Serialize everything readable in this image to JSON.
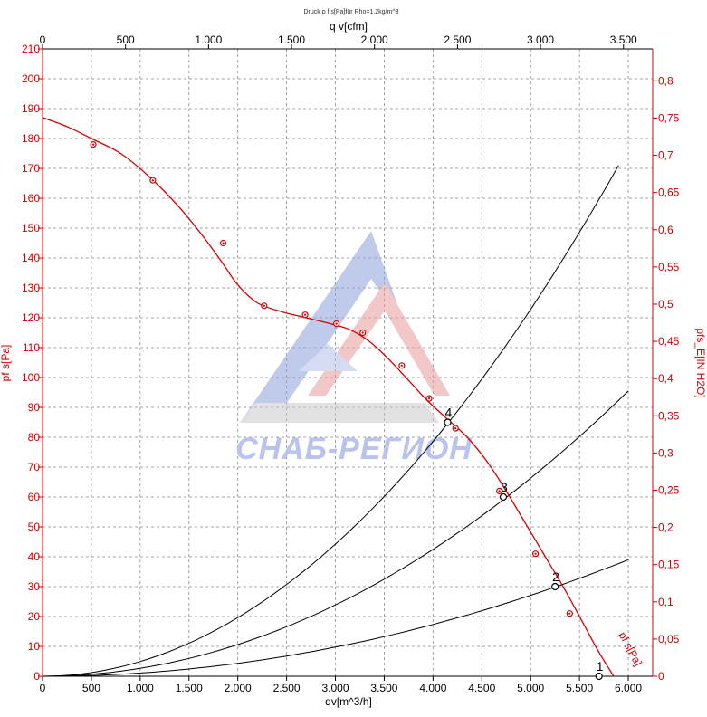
{
  "chart_data": {
    "type": "line",
    "title": "Druck p f s[Pa]für Rho=1,2kg/m^3",
    "xlabel": "qv[m^3/h]",
    "x2label": "q v[cfm]",
    "ylabel": "pf s[Pa]",
    "y2label": "pfs_E[IN H2O]",
    "xlim": [
      0,
      6250
    ],
    "ylim": [
      0,
      210
    ],
    "x2lim": [
      0,
      3676
    ],
    "y2lim": [
      0,
      0.843
    ],
    "grid": true,
    "x_ticks": [
      {
        "v": 0,
        "label": "0"
      },
      {
        "v": 500,
        "label": "500"
      },
      {
        "v": 1000,
        "label": "1.000"
      },
      {
        "v": 1500,
        "label": "1.500"
      },
      {
        "v": 2000,
        "label": "2.000"
      },
      {
        "v": 2500,
        "label": "2.500"
      },
      {
        "v": 3000,
        "label": "3.000"
      },
      {
        "v": 3500,
        "label": "3.500"
      },
      {
        "v": 4000,
        "label": "4.000"
      },
      {
        "v": 4500,
        "label": "4.500"
      },
      {
        "v": 5000,
        "label": "5.000"
      },
      {
        "v": 5500,
        "label": "5.500"
      },
      {
        "v": 6000,
        "label": "6.000"
      }
    ],
    "x2_ticks": [
      {
        "v": 0,
        "label": "0"
      },
      {
        "v": 500,
        "label": "500"
      },
      {
        "v": 1000,
        "label": "1.000"
      },
      {
        "v": 1500,
        "label": "1.500"
      },
      {
        "v": 2000,
        "label": "2.000"
      },
      {
        "v": 2500,
        "label": "2.500"
      },
      {
        "v": 3000,
        "label": "3.000"
      },
      {
        "v": 3500,
        "label": "3.500"
      }
    ],
    "y_ticks": [
      0,
      10,
      20,
      30,
      40,
      50,
      60,
      70,
      80,
      90,
      100,
      110,
      120,
      130,
      140,
      150,
      160,
      170,
      180,
      190,
      200,
      210
    ],
    "y2_ticks": [
      {
        "v": 0,
        "label": "0"
      },
      {
        "v": 0.05,
        "label": "0,05"
      },
      {
        "v": 0.1,
        "label": "0,1"
      },
      {
        "v": 0.15,
        "label": "0,15"
      },
      {
        "v": 0.2,
        "label": "0,2"
      },
      {
        "v": 0.25,
        "label": "0,25"
      },
      {
        "v": 0.3,
        "label": "0,3"
      },
      {
        "v": 0.35,
        "label": "0,35"
      },
      {
        "v": 0.4,
        "label": "0,4"
      },
      {
        "v": 0.45,
        "label": "0,45"
      },
      {
        "v": 0.5,
        "label": "0,5"
      },
      {
        "v": 0.55,
        "label": "0,55"
      },
      {
        "v": 0.6,
        "label": "0,6"
      },
      {
        "v": 0.65,
        "label": "0,65"
      },
      {
        "v": 0.7,
        "label": "0,7"
      },
      {
        "v": 0.75,
        "label": "0,75"
      },
      {
        "v": 0.8,
        "label": "0,8"
      }
    ],
    "fan_curve": {
      "name": "pf s[Pa]",
      "x": [
        0,
        250,
        500,
        800,
        1100,
        1400,
        1650,
        1850,
        2000,
        2200,
        2450,
        2700,
        2950,
        3150,
        3350,
        3550,
        3750,
        3950,
        4150,
        4350,
        4550,
        4750,
        4950,
        5150,
        5350,
        5550,
        5700,
        5850
      ],
      "y": [
        187,
        184,
        180,
        175,
        167,
        157,
        147,
        138,
        131,
        125,
        122,
        120,
        118,
        116,
        112,
        106,
        99,
        92,
        86,
        80,
        72,
        62,
        51,
        40,
        29,
        17,
        8,
        0
      ]
    },
    "measured_points": {
      "x": [
        520,
        1130,
        1850,
        2270,
        2690,
        3010,
        3280,
        3680,
        3960,
        4230,
        4680,
        5050,
        5400
      ],
      "y": [
        178,
        166,
        145,
        124,
        121,
        118,
        115,
        104,
        93,
        83,
        62,
        41,
        21
      ]
    },
    "system_curves": [
      {
        "label": "1",
        "x_max": 6000,
        "y_max": 0,
        "op_x": 5700,
        "op_y": 0
      },
      {
        "label": "2",
        "x_max": 6000,
        "y_max": 39,
        "op_x": 5250,
        "op_y": 30
      },
      {
        "label": "3",
        "x_max": 6000,
        "y_max": 95.5,
        "op_x": 4720,
        "op_y": 60
      },
      {
        "label": "4",
        "x_max": 5900,
        "y_max": 171,
        "op_x": 4150,
        "op_y": 85
      }
    ],
    "curve_label": "pf s[Pa]",
    "colors": {
      "fan": "#d40000",
      "system": "#000000",
      "axis_red": "#d40000",
      "grid": "#888888"
    }
  },
  "watermark": {
    "text": "СНАБ-РЕГИОН"
  }
}
